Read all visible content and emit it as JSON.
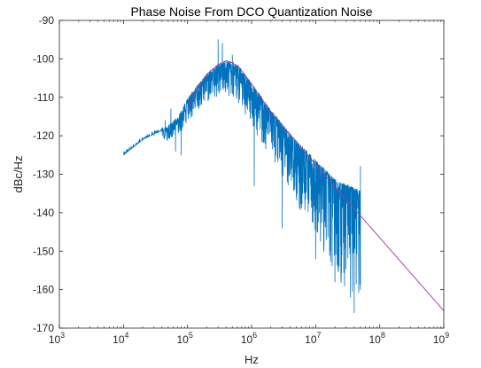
{
  "chart_data": {
    "type": "line",
    "title": "Phase Noise From DCO Quantization Noise",
    "xlabel": "Hz",
    "ylabel": "dBc/Hz",
    "xscale": "log",
    "xlim": [
      1000,
      1000000000
    ],
    "ylim": [
      -170,
      -90
    ],
    "grid": false,
    "xticks": [
      {
        "base": "10",
        "exp": "3",
        "value": 1000
      },
      {
        "base": "10",
        "exp": "4",
        "value": 10000
      },
      {
        "base": "10",
        "exp": "5",
        "value": 100000
      },
      {
        "base": "10",
        "exp": "6",
        "value": 1000000
      },
      {
        "base": "10",
        "exp": "7",
        "value": 10000000
      },
      {
        "base": "10",
        "exp": "8",
        "value": 100000000
      },
      {
        "base": "10",
        "exp": "9",
        "value": 1000000000
      }
    ],
    "yticks": [
      "-90",
      "-100",
      "-110",
      "-120",
      "-130",
      "-140",
      "-150",
      "-160",
      "-170"
    ],
    "series": [
      {
        "color": "#0072bd",
        "style": "noisy-measured",
        "anchors": [
          {
            "x": 10000,
            "y": -125
          },
          {
            "x": 20000,
            "y": -121
          },
          {
            "x": 30000,
            "y": -119.5
          },
          {
            "x": 50000,
            "y": -118
          },
          {
            "x": 70000,
            "y": -116
          },
          {
            "x": 100000,
            "y": -111
          },
          {
            "x": 150000,
            "y": -107
          },
          {
            "x": 250000,
            "y": -103
          },
          {
            "x": 400000,
            "y": -101
          },
          {
            "x": 600000,
            "y": -102
          },
          {
            "x": 1000000,
            "y": -107
          },
          {
            "x": 2000000,
            "y": -114
          },
          {
            "x": 5000000,
            "y": -122
          },
          {
            "x": 10000000,
            "y": -127
          },
          {
            "x": 20000000,
            "y": -132
          },
          {
            "x": 50000000,
            "y": -135
          }
        ],
        "spikes": [
          {
            "x": 30000,
            "y": -120
          },
          {
            "x": 45000,
            "y": -116
          },
          {
            "x": 55000,
            "y": -113
          },
          {
            "x": 65000,
            "y": -124
          },
          {
            "x": 80000,
            "y": -125
          },
          {
            "x": 120000,
            "y": -113
          },
          {
            "x": 180000,
            "y": -109
          },
          {
            "x": 300000,
            "y": -95
          },
          {
            "x": 350000,
            "y": -96
          },
          {
            "x": 500000,
            "y": -99
          },
          {
            "x": 1100000,
            "y": -133
          },
          {
            "x": 3000000,
            "y": -144
          },
          {
            "x": 10000000,
            "y": -152
          },
          {
            "x": 20000000,
            "y": -158
          },
          {
            "x": 35000000,
            "y": -162
          },
          {
            "x": 40000000,
            "y": -166
          }
        ],
        "end_x": 50000000,
        "end_range": [
          -128,
          -160
        ]
      },
      {
        "color": "#a23c9a",
        "style": "theoretical",
        "points": [
          {
            "x": 100000,
            "y": -113
          },
          {
            "x": 150000,
            "y": -107
          },
          {
            "x": 200000,
            "y": -104
          },
          {
            "x": 300000,
            "y": -101.5
          },
          {
            "x": 400000,
            "y": -100.5
          },
          {
            "x": 500000,
            "y": -101
          },
          {
            "x": 700000,
            "y": -103
          },
          {
            "x": 1000000,
            "y": -106.5
          },
          {
            "x": 2000000,
            "y": -114
          },
          {
            "x": 5000000,
            "y": -121.5
          },
          {
            "x": 10000000,
            "y": -127.5
          },
          {
            "x": 100000000,
            "y": -146.5
          },
          {
            "x": 1000000000,
            "y": -165.5
          }
        ]
      }
    ]
  }
}
